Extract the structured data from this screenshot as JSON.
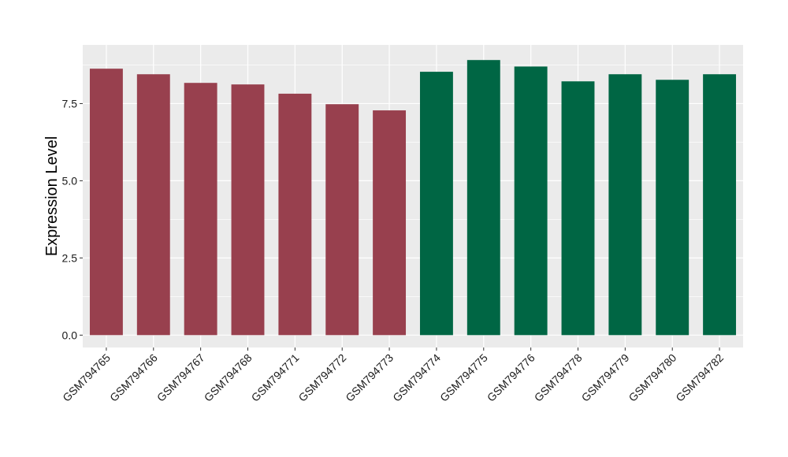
{
  "chart_data": {
    "type": "bar",
    "title": "",
    "xlabel": "",
    "ylabel": "Expression Level",
    "ylim": [
      -0.4,
      9.4
    ],
    "yticks": [
      0.0,
      2.5,
      5.0,
      7.5
    ],
    "ytick_labels": [
      "0.0",
      "2.5",
      "5.0",
      "7.5"
    ],
    "grid": true,
    "legend": "none",
    "categories": [
      "GSM794765",
      "GSM794766",
      "GSM794767",
      "GSM794768",
      "GSM794771",
      "GSM794772",
      "GSM794773",
      "GSM794774",
      "GSM794775",
      "GSM794776",
      "GSM794778",
      "GSM794779",
      "GSM794780",
      "GSM794782"
    ],
    "values": [
      8.63,
      8.45,
      8.17,
      8.12,
      7.82,
      7.48,
      7.28,
      8.53,
      8.91,
      8.7,
      8.22,
      8.45,
      8.27,
      8.45
    ],
    "bar_colors": [
      "#98404e",
      "#98404e",
      "#98404e",
      "#98404e",
      "#98404e",
      "#98404e",
      "#98404e",
      "#006644",
      "#006644",
      "#006644",
      "#006644",
      "#006644",
      "#006644",
      "#006644"
    ],
    "panel_background": "#ebebeb",
    "grid_color": "#ffffff"
  }
}
